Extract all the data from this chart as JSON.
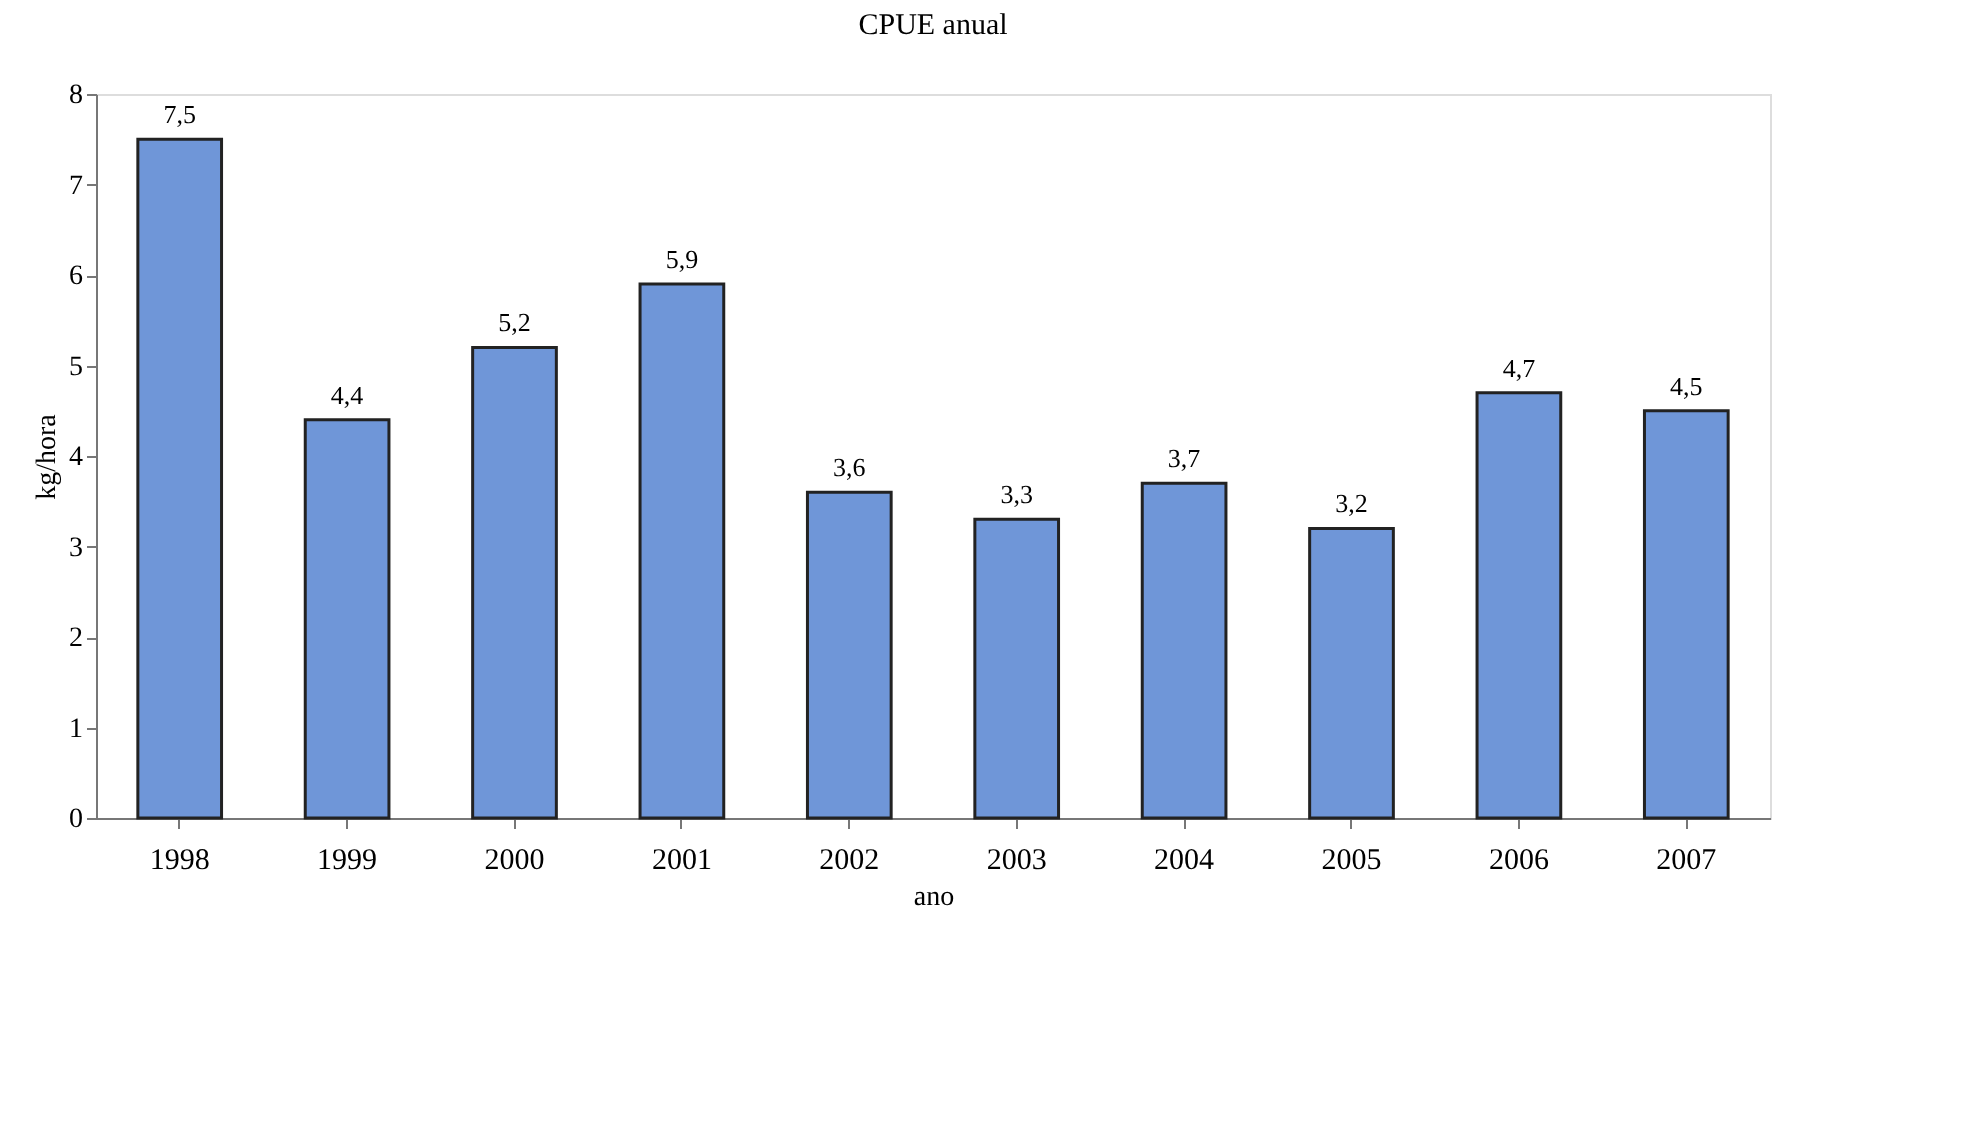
{
  "chart_data": {
    "type": "bar",
    "title": "CPUE anual",
    "xlabel": "ano",
    "ylabel": "kg/hora",
    "categories": [
      "1998",
      "1999",
      "2000",
      "2001",
      "2002",
      "2003",
      "2004",
      "2005",
      "2006",
      "2007"
    ],
    "values": [
      7.5,
      4.4,
      5.2,
      5.9,
      3.6,
      3.3,
      3.7,
      3.2,
      4.7,
      4.5
    ],
    "value_labels": [
      "7,5",
      "4,4",
      "5,2",
      "5,9",
      "3,6",
      "3,3",
      "3,7",
      "3,2",
      "4,7",
      "4,5"
    ],
    "color": "#6f96d8",
    "ylim": [
      0,
      8
    ],
    "yticks": [
      0,
      1,
      2,
      3,
      4,
      5,
      6,
      7,
      8
    ],
    "grid": false
  }
}
